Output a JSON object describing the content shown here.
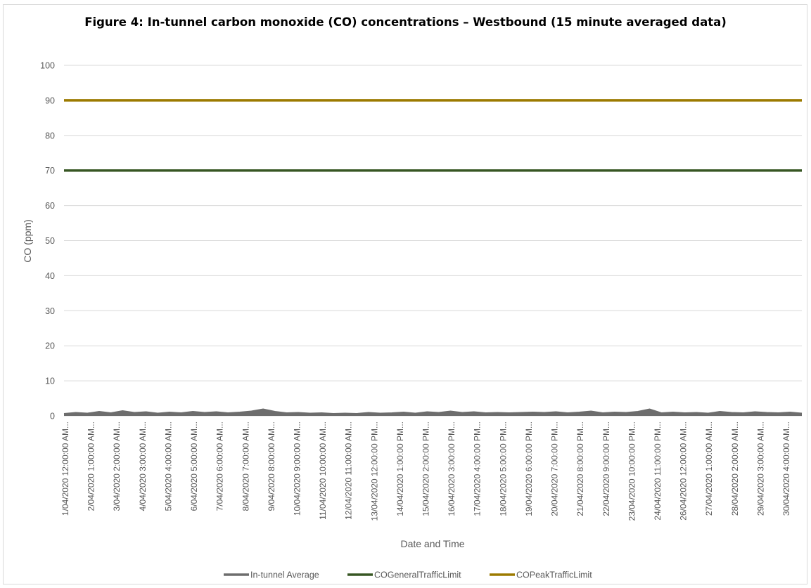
{
  "chart_data": {
    "type": "line",
    "title": "Figure 4: In-tunnel carbon monoxide (CO) concentrations – Westbound (15 minute averaged data)",
    "xlabel": "Date and Time",
    "ylabel": "CO (ppm)",
    "ylim": [
      0,
      100
    ],
    "yticks": [
      0,
      10,
      20,
      30,
      40,
      50,
      60,
      70,
      80,
      90,
      100
    ],
    "grid": "horizontal",
    "legend_position": "bottom",
    "x_tick_labels": [
      "1/04/2020 12:00:00 AM...",
      "2/04/2020 1:00:00 AM...",
      "3/04/2020 2:00:00 AM...",
      "4/04/2020 3:00:00 AM...",
      "5/04/2020 4:00:00 AM...",
      "6/04/2020 5:00:00 AM...",
      "7/04/2020 6:00:00 AM...",
      "8/04/2020 7:00:00 AM...",
      "9/04/2020 8:00:00 AM...",
      "10/04/2020 9:00:00 AM...",
      "11/04/2020 10:00:00 AM...",
      "12/04/2020 11:00:00 AM...",
      "13/04/2020 12:00:00 PM...",
      "14/04/2020 1:00:00 PM...",
      "15/04/2020 2:00:00 PM...",
      "16/04/2020 3:00:00 PM...",
      "17/04/2020 4:00:00 PM...",
      "18/04/2020 5:00:00 PM...",
      "19/04/2020 6:00:00 PM...",
      "20/04/2020 7:00:00 PM...",
      "21/04/2020 8:00:00 PM...",
      "22/04/2020 9:00:00 PM...",
      "23/04/2020 10:00:00 PM...",
      "24/04/2020 11:00:00 PM...",
      "26/04/2020 12:00:00 AM...",
      "27/04/2020 1:00:00 AM...",
      "28/04/2020 2:00:00 AM...",
      "29/04/2020 3:00:00 AM...",
      "30/04/2020 4:00:00 AM..."
    ],
    "series": [
      {
        "name": "In-tunnel Average",
        "color": "#6d6d6d",
        "values": [
          0.6,
          0.9,
          0.7,
          1.2,
          0.8,
          1.4,
          0.9,
          1.1,
          0.7,
          1.0,
          0.8,
          1.2,
          0.9,
          1.1,
          0.8,
          1.0,
          1.3,
          1.9,
          1.2,
          0.8,
          0.9,
          0.7,
          0.8,
          0.6,
          0.7,
          0.6,
          0.9,
          0.7,
          0.8,
          1.0,
          0.7,
          1.1,
          0.9,
          1.3,
          0.9,
          1.1,
          0.8,
          0.9,
          0.8,
          0.9,
          1.0,
          0.9,
          1.1,
          0.8,
          1.0,
          1.3,
          0.8,
          1.0,
          0.9,
          1.2,
          1.9,
          0.8,
          1.0,
          0.8,
          0.9,
          0.7,
          1.2,
          0.9,
          0.8,
          1.1,
          0.9,
          0.8,
          1.0,
          0.7
        ]
      },
      {
        "name": "COGeneralTrafficLimit",
        "color": "#375623",
        "values": [
          70,
          70
        ]
      },
      {
        "name": "COPeakTrafficLimit",
        "color": "#9c7a00",
        "values": [
          90,
          90
        ]
      }
    ]
  }
}
